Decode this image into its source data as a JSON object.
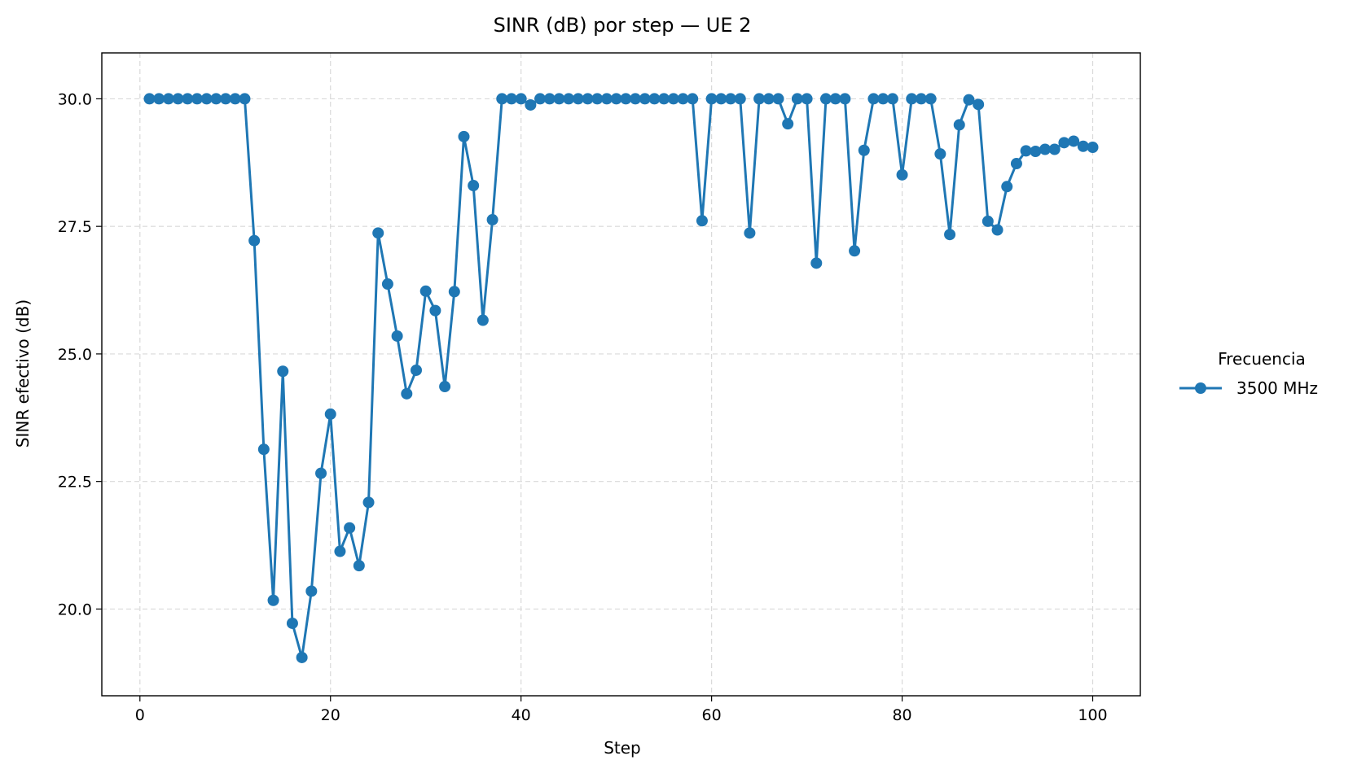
{
  "chart_data": {
    "type": "line",
    "title": "SINR (dB) por step — UE 2",
    "xlabel": "Step",
    "ylabel": "SINR efectivo (dB)",
    "xlim": [
      -4,
      105
    ],
    "ylim": [
      18.3,
      30.9
    ],
    "xticks": [
      0,
      20,
      40,
      60,
      80,
      100
    ],
    "yticks": [
      20.0,
      22.5,
      25.0,
      27.5,
      30.0
    ],
    "xtick_labels": [
      "0",
      "20",
      "40",
      "60",
      "80",
      "100"
    ],
    "ytick_labels": [
      "20.0",
      "22.5",
      "25.0",
      "27.5",
      "30.0"
    ],
    "grid": true,
    "legend": {
      "title": "Frecuencia",
      "placement": "outside-right"
    },
    "series": [
      {
        "name": "3500 MHz",
        "color": "#1f77b4",
        "marker": "circle",
        "x": [
          1,
          2,
          3,
          4,
          5,
          6,
          7,
          8,
          9,
          10,
          11,
          12,
          13,
          14,
          15,
          16,
          17,
          18,
          19,
          20,
          21,
          22,
          23,
          24,
          25,
          26,
          27,
          28,
          29,
          30,
          31,
          32,
          33,
          34,
          35,
          36,
          37,
          38,
          39,
          40,
          41,
          42,
          43,
          44,
          45,
          46,
          47,
          48,
          49,
          50,
          51,
          52,
          53,
          54,
          55,
          56,
          57,
          58,
          59,
          60,
          61,
          62,
          63,
          64,
          65,
          66,
          67,
          68,
          69,
          70,
          71,
          72,
          73,
          74,
          75,
          76,
          77,
          78,
          79,
          80,
          81,
          82,
          83,
          84,
          85,
          86,
          87,
          88,
          89,
          90,
          91,
          92,
          93,
          94,
          95,
          96,
          97,
          98,
          99,
          100
        ],
        "values": [
          30.0,
          30.0,
          30.0,
          30.0,
          30.0,
          30.0,
          30.0,
          30.0,
          30.0,
          30.0,
          30.0,
          27.22,
          23.13,
          20.17,
          24.66,
          19.72,
          19.05,
          20.35,
          22.66,
          23.82,
          21.13,
          21.59,
          20.85,
          22.09,
          27.37,
          26.37,
          25.35,
          24.22,
          24.68,
          26.23,
          25.85,
          24.36,
          26.22,
          29.26,
          28.3,
          25.66,
          27.63,
          30.0,
          30.0,
          30.0,
          29.88,
          30.0,
          30.0,
          30.0,
          30.0,
          30.0,
          30.0,
          30.0,
          30.0,
          30.0,
          30.0,
          30.0,
          30.0,
          30.0,
          30.0,
          30.0,
          30.0,
          30.0,
          27.61,
          30.0,
          30.0,
          30.0,
          30.0,
          27.37,
          30.0,
          30.0,
          30.0,
          29.51,
          30.0,
          30.0,
          26.78,
          30.0,
          30.0,
          30.0,
          27.02,
          28.99,
          30.0,
          30.0,
          30.0,
          28.51,
          30.0,
          30.0,
          30.0,
          28.92,
          27.34,
          29.49,
          29.98,
          29.89,
          27.6,
          27.43,
          28.28,
          28.73,
          28.98,
          28.97,
          29.01,
          29.01,
          29.14,
          29.17,
          29.07,
          29.05
        ]
      }
    ]
  }
}
